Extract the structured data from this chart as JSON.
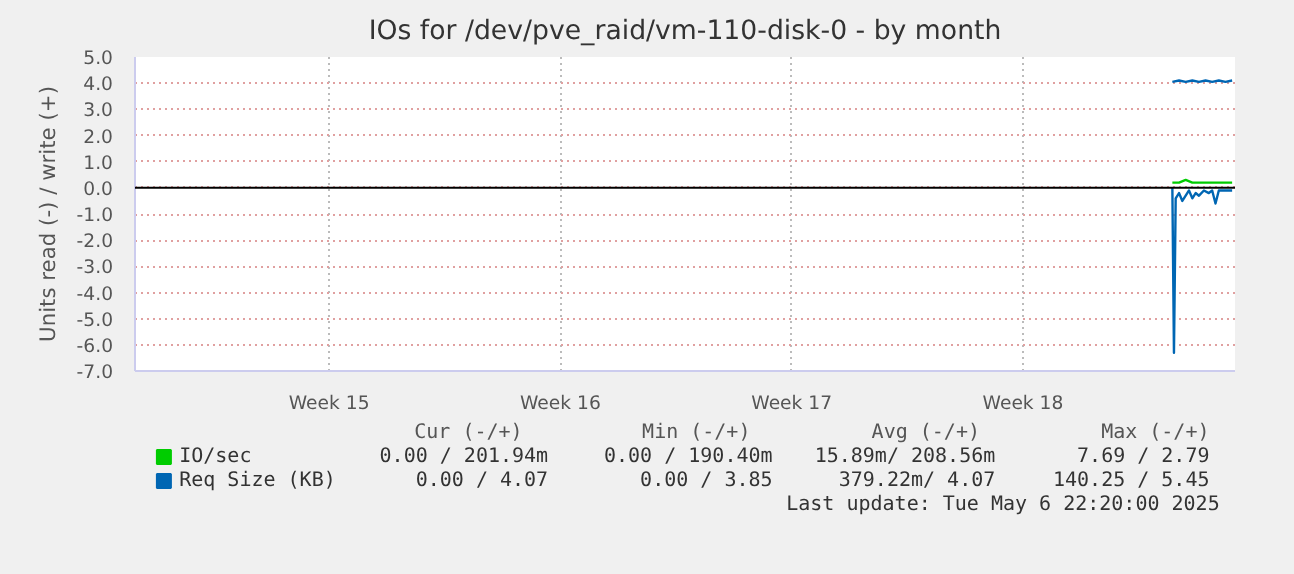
{
  "chart_data": {
    "type": "line",
    "title": "IOs for /dev/pve_raid/vm-110-disk-0 - by month",
    "ylabel": "Units read (-) / write (+)",
    "xlim": [
      "2025-04-03T15:00",
      "2025-05-06T22:00"
    ],
    "xticks": [
      {
        "value": "2025-04-09T12:00",
        "label": "Week 15"
      },
      {
        "value": "2025-04-16T12:00",
        "label": "Week 16"
      },
      {
        "value": "2025-04-23T12:00",
        "label": "Week 17"
      },
      {
        "value": "2025-04-30T12:00",
        "label": "Week 18"
      }
    ],
    "ylim": [
      -7,
      5
    ],
    "yticks": [
      {
        "value": 5,
        "label": "5.0"
      },
      {
        "value": 4,
        "label": "4.0"
      },
      {
        "value": 3,
        "label": "3.0"
      },
      {
        "value": 2,
        "label": "2.0"
      },
      {
        "value": 1,
        "label": "1.0"
      },
      {
        "value": 0,
        "label": "0.0"
      },
      {
        "value": -1,
        "label": "-1.0"
      },
      {
        "value": -2,
        "label": "-2.0"
      },
      {
        "value": -3,
        "label": "-3.0"
      },
      {
        "value": -4,
        "label": "-4.0"
      },
      {
        "value": -5,
        "label": "-5.0"
      },
      {
        "value": -6,
        "label": "-6.0"
      },
      {
        "value": -7,
        "label": "-7.0"
      }
    ],
    "grid": true,
    "legend": "bottom",
    "ref_lines": [
      {
        "axis": "y",
        "value": 0,
        "label": null,
        "color": "#000000"
      }
    ],
    "series": [
      {
        "name": "IO/sec",
        "color": "#00cc00",
        "x": [
          "2025-05-05T00:30",
          "2025-05-05T05:20",
          "2025-05-05T10:10",
          "2025-05-05T15:00",
          "2025-05-05T19:50",
          "2025-05-06T03:00",
          "2025-05-06T10:15",
          "2025-05-06T19:55"
        ],
        "values": [
          0.2,
          0.2,
          0.3,
          0.2,
          0.2,
          0.2,
          0.2,
          0.2
        ]
      },
      {
        "name": "Req Size (KB)",
        "color": "#0066b3",
        "x": [
          "2025-05-05T00:30",
          "2025-05-05T05:20",
          "2025-05-05T10:10",
          "2025-05-05T15:00",
          "2025-05-05T19:50",
          "2025-05-06T00:35",
          "2025-05-06T05:25",
          "2025-05-06T10:15",
          "2025-05-06T15:05",
          "2025-05-06T19:55"
        ],
        "values": [
          4.05,
          4.1,
          4.05,
          4.1,
          4.05,
          4.1,
          4.05,
          4.1,
          4.05,
          4.1
        ]
      },
      {
        "color": "#0066b3",
        "x": [
          "2025-05-05T00:30",
          "2025-05-05T01:40",
          "2025-05-05T02:55",
          "2025-05-05T05:20",
          "2025-05-05T07:45",
          "2025-05-05T10:10",
          "2025-05-05T12:35",
          "2025-05-05T15:00",
          "2025-05-05T17:25",
          "2025-05-05T19:50",
          "2025-05-05T23:25",
          "2025-05-06T03:00",
          "2025-05-06T05:25",
          "2025-05-06T07:50",
          "2025-05-06T10:15",
          "2025-05-06T12:40",
          "2025-05-06T19:55"
        ],
        "values": [
          0,
          -6.3,
          -0.4,
          -0.2,
          -0.5,
          -0.3,
          -0.1,
          -0.4,
          -0.2,
          -0.3,
          -0.1,
          -0.2,
          -0.1,
          -0.6,
          -0.1,
          -0.1,
          -0.1
        ]
      }
    ],
    "annotations": [
      "Cur (-/+)",
      "Min (-/+)",
      "Avg (-/+)",
      "Max (-/+)",
      "0.00 / 201.94m",
      "0.00 / 190.40m",
      "15.89m/ 208.56m",
      "7.69 / 2.79",
      "0.00 / 4.07",
      "0.00 / 3.85",
      "379.22m/ 4.07",
      "140.25 / 5.45",
      "Last update: Tue May 6 22:20:00 2025"
    ]
  }
}
